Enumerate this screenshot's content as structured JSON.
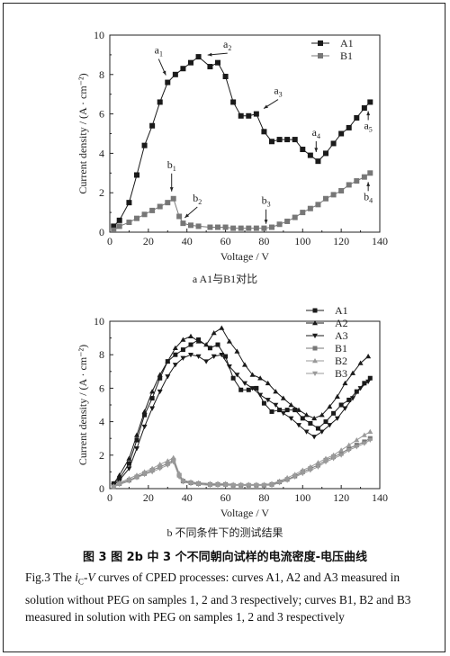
{
  "chart_data": [
    {
      "type": "scatter",
      "panel": "a",
      "xlabel": "Voltage / V",
      "ylabel": "Current density / (A · cm⁻²)",
      "xlim": [
        0,
        140
      ],
      "ylim": [
        0,
        10
      ],
      "xticks": [
        0,
        20,
        40,
        60,
        80,
        100,
        120,
        140
      ],
      "yticks": [
        0,
        2,
        4,
        6,
        8,
        10
      ],
      "legend": "top-right",
      "series": [
        {
          "name": "A1",
          "marker": "square-filled",
          "x": [
            2,
            5,
            10,
            14,
            18,
            22,
            26,
            30,
            34,
            38,
            42,
            46,
            52,
            56,
            60,
            64,
            68,
            72,
            76,
            80,
            84,
            88,
            92,
            96,
            100,
            104,
            108,
            112,
            116,
            120,
            124,
            128,
            132,
            135
          ],
          "y": [
            0.3,
            0.6,
            1.5,
            2.9,
            4.4,
            5.4,
            6.6,
            7.6,
            8.0,
            8.3,
            8.6,
            8.9,
            8.4,
            8.6,
            7.9,
            6.6,
            5.9,
            5.9,
            6.0,
            5.1,
            4.6,
            4.7,
            4.7,
            4.7,
            4.2,
            3.9,
            3.6,
            4.0,
            4.5,
            5.0,
            5.3,
            5.8,
            6.3,
            6.6
          ]
        },
        {
          "name": "B1",
          "marker": "square-gray",
          "x": [
            2,
            5,
            10,
            14,
            18,
            22,
            26,
            30,
            33,
            36,
            38,
            42,
            46,
            52,
            56,
            60,
            64,
            68,
            72,
            76,
            80,
            84,
            88,
            92,
            96,
            100,
            104,
            108,
            112,
            116,
            120,
            124,
            128,
            132,
            135
          ],
          "y": [
            0.1,
            0.3,
            0.5,
            0.7,
            0.9,
            1.1,
            1.3,
            1.5,
            1.7,
            0.8,
            0.45,
            0.35,
            0.3,
            0.25,
            0.25,
            0.25,
            0.2,
            0.2,
            0.2,
            0.2,
            0.2,
            0.25,
            0.4,
            0.55,
            0.75,
            1.0,
            1.2,
            1.4,
            1.7,
            1.9,
            2.1,
            2.4,
            2.6,
            2.8,
            3.0
          ]
        }
      ],
      "annotations": [
        {
          "label": "a1",
          "main": "a",
          "sub": "1",
          "x": 30,
          "y": 7.6
        },
        {
          "label": "a2",
          "main": "a",
          "sub": "2",
          "x": 47,
          "y": 8.9
        },
        {
          "label": "a3",
          "main": "a",
          "sub": "3",
          "x": 77,
          "y": 6.0
        },
        {
          "label": "a4",
          "main": "a",
          "sub": "4",
          "x": 107,
          "y": 3.7
        },
        {
          "label": "a5",
          "main": "a",
          "sub": "5",
          "x": 134,
          "y": 6.6
        },
        {
          "label": "b1",
          "main": "b",
          "sub": "1",
          "x": 33,
          "y": 1.7
        },
        {
          "label": "b2",
          "main": "b",
          "sub": "2",
          "x": 37,
          "y": 0.55
        },
        {
          "label": "b3",
          "main": "b",
          "sub": "3",
          "x": 81,
          "y": 0.15
        },
        {
          "label": "b4",
          "main": "b",
          "sub": "4",
          "x": 134,
          "y": 3.0
        }
      ],
      "caption": "a   A1与B1对比"
    },
    {
      "type": "scatter",
      "panel": "b",
      "xlabel": "Voltage / V",
      "ylabel": "Current density / (A · cm⁻²)",
      "xlim": [
        0,
        140
      ],
      "ylim": [
        0,
        10
      ],
      "xticks": [
        0,
        20,
        40,
        60,
        80,
        100,
        120,
        140
      ],
      "yticks": [
        0,
        2,
        4,
        6,
        8,
        10
      ],
      "legend": "top-right",
      "series": [
        {
          "name": "A1",
          "marker": "square-filled",
          "x": [
            2,
            5,
            10,
            14,
            18,
            22,
            26,
            30,
            34,
            38,
            42,
            46,
            52,
            56,
            60,
            64,
            68,
            72,
            76,
            80,
            84,
            88,
            92,
            96,
            100,
            104,
            108,
            112,
            116,
            120,
            124,
            128,
            132,
            135
          ],
          "y": [
            0.3,
            0.6,
            1.5,
            2.9,
            4.4,
            5.4,
            6.6,
            7.6,
            8.0,
            8.3,
            8.6,
            8.9,
            8.4,
            8.6,
            7.9,
            6.6,
            5.9,
            5.9,
            6.0,
            5.1,
            4.6,
            4.7,
            4.7,
            4.7,
            4.2,
            3.9,
            3.6,
            4.0,
            4.5,
            5.0,
            5.3,
            5.8,
            6.3,
            6.6
          ]
        },
        {
          "name": "A2",
          "marker": "triangle-up",
          "x": [
            2,
            5,
            10,
            14,
            18,
            22,
            26,
            30,
            34,
            38,
            42,
            46,
            50,
            54,
            58,
            62,
            66,
            70,
            74,
            78,
            82,
            86,
            90,
            94,
            98,
            102,
            106,
            110,
            114,
            118,
            122,
            126,
            130,
            134
          ],
          "y": [
            0.3,
            0.8,
            1.8,
            3.2,
            4.6,
            5.8,
            6.8,
            7.6,
            8.4,
            8.9,
            9.1,
            8.8,
            8.6,
            9.3,
            9.6,
            8.8,
            8.2,
            7.4,
            6.8,
            6.6,
            6.3,
            5.8,
            5.4,
            5.0,
            4.7,
            4.4,
            4.2,
            4.4,
            4.9,
            5.5,
            6.3,
            6.9,
            7.5,
            7.9
          ]
        },
        {
          "name": "A3",
          "marker": "triangle-down",
          "x": [
            2,
            5,
            10,
            14,
            18,
            22,
            26,
            30,
            34,
            38,
            42,
            46,
            50,
            54,
            58,
            62,
            66,
            70,
            74,
            78,
            82,
            86,
            90,
            94,
            98,
            102,
            106,
            110,
            114,
            118,
            122,
            126,
            130,
            134
          ],
          "y": [
            0.2,
            0.5,
            1.2,
            2.4,
            3.7,
            4.8,
            5.8,
            6.7,
            7.4,
            7.8,
            8.0,
            7.9,
            7.6,
            7.9,
            8.0,
            7.3,
            6.8,
            6.3,
            6.0,
            5.6,
            5.3,
            5.0,
            4.5,
            4.2,
            3.8,
            3.4,
            3.1,
            3.4,
            3.8,
            4.2,
            4.8,
            5.4,
            6.0,
            6.4
          ]
        },
        {
          "name": "B1",
          "marker": "square-gray",
          "x": [
            2,
            5,
            10,
            14,
            18,
            22,
            26,
            30,
            33,
            36,
            38,
            42,
            46,
            52,
            56,
            60,
            64,
            68,
            72,
            76,
            80,
            84,
            88,
            92,
            96,
            100,
            104,
            108,
            112,
            116,
            120,
            124,
            128,
            132,
            135
          ],
          "y": [
            0.1,
            0.3,
            0.5,
            0.7,
            0.9,
            1.1,
            1.3,
            1.5,
            1.7,
            0.8,
            0.45,
            0.35,
            0.3,
            0.25,
            0.25,
            0.25,
            0.2,
            0.2,
            0.2,
            0.2,
            0.2,
            0.25,
            0.4,
            0.55,
            0.75,
            1.0,
            1.2,
            1.4,
            1.7,
            1.9,
            2.1,
            2.4,
            2.6,
            2.8,
            3.0
          ]
        },
        {
          "name": "B2",
          "marker": "triangle-up-gray",
          "x": [
            2,
            5,
            10,
            14,
            18,
            22,
            26,
            30,
            33,
            36,
            38,
            42,
            46,
            52,
            56,
            60,
            64,
            68,
            72,
            76,
            80,
            84,
            88,
            92,
            96,
            100,
            104,
            108,
            112,
            116,
            120,
            124,
            128,
            132,
            135
          ],
          "y": [
            0.15,
            0.35,
            0.6,
            0.8,
            1.0,
            1.2,
            1.45,
            1.65,
            1.85,
            0.9,
            0.5,
            0.4,
            0.35,
            0.3,
            0.3,
            0.3,
            0.25,
            0.25,
            0.25,
            0.25,
            0.25,
            0.3,
            0.45,
            0.65,
            0.85,
            1.1,
            1.3,
            1.55,
            1.8,
            2.0,
            2.3,
            2.6,
            2.9,
            3.2,
            3.4
          ]
        },
        {
          "name": "B3",
          "marker": "triangle-down-gray",
          "x": [
            2,
            5,
            10,
            14,
            18,
            22,
            26,
            30,
            33,
            36,
            38,
            42,
            46,
            52,
            56,
            60,
            64,
            68,
            72,
            76,
            80,
            84,
            88,
            92,
            96,
            100,
            104,
            108,
            112,
            116,
            120,
            124,
            128,
            132,
            135
          ],
          "y": [
            0.1,
            0.25,
            0.45,
            0.65,
            0.85,
            1.0,
            1.2,
            1.4,
            1.6,
            0.7,
            0.4,
            0.3,
            0.25,
            0.2,
            0.2,
            0.2,
            0.2,
            0.2,
            0.2,
            0.2,
            0.2,
            0.2,
            0.35,
            0.5,
            0.7,
            0.9,
            1.1,
            1.3,
            1.6,
            1.8,
            2.0,
            2.3,
            2.5,
            2.7,
            2.9
          ]
        }
      ],
      "caption": "b   不同条件下的测试结果"
    }
  ],
  "caption": {
    "zh": "图 3    图 2b 中 3 个不同朝向试样的电流密度-电压曲线",
    "en_prefix": "Fig.3 The ",
    "en_var1": "i",
    "en_var1_sub": "C",
    "en_dash": "-",
    "en_var2": "V",
    "en_rest": " curves of CPED processes: curves A1, A2 and A3 measured in solution without PEG on samples 1, 2 and 3 respectively; curves B1, B2 and B3 measured in solution with PEG on samples 1, 2 and 3 respectively"
  },
  "colors": {
    "dark": "#1a1a1a",
    "gray": "#777777",
    "lightgray": "#9a9a9a"
  }
}
